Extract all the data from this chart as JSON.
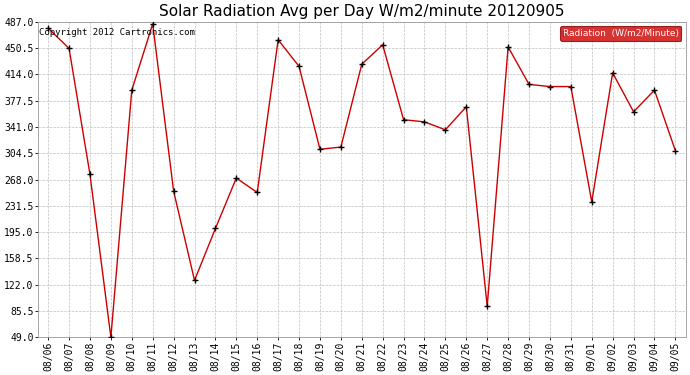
{
  "title": "Solar Radiation Avg per Day W/m2/minute 20120905",
  "copyright": "Copyright 2012 Cartronics.com",
  "legend_label": "Radiation  (W/m2/Minute)",
  "dates": [
    "08/06",
    "08/07",
    "08/08",
    "08/09",
    "08/10",
    "08/11",
    "08/12",
    "08/13",
    "08/14",
    "08/15",
    "08/16",
    "08/17",
    "08/18",
    "08/19",
    "08/20",
    "08/21",
    "08/22",
    "08/23",
    "08/24",
    "08/25",
    "08/26",
    "08/27",
    "08/28",
    "08/29",
    "08/30",
    "08/31",
    "09/01",
    "09/02",
    "09/03",
    "09/04",
    "09/05"
  ],
  "values": [
    478,
    450,
    275,
    49,
    392,
    484,
    252,
    128,
    200,
    270,
    250,
    462,
    425,
    310,
    313,
    428,
    455,
    351,
    348,
    337,
    369,
    92,
    452,
    400,
    397,
    397,
    237,
    416,
    362,
    392,
    308
  ],
  "y_ticks": [
    49.0,
    85.5,
    122.0,
    158.5,
    195.0,
    231.5,
    268.0,
    304.5,
    341.0,
    377.5,
    414.0,
    450.5,
    487.0
  ],
  "ylim": [
    49.0,
    487.0
  ],
  "line_color": "#cc0000",
  "marker_color": "#000000",
  "bg_color": "#ffffff",
  "plot_bg_color": "#ffffff",
  "grid_color": "#c0c0c0",
  "title_fontsize": 11,
  "tick_fontsize": 7,
  "copyright_fontsize": 6.5,
  "legend_bg": "#cc0000",
  "legend_text_color": "#ffffff"
}
